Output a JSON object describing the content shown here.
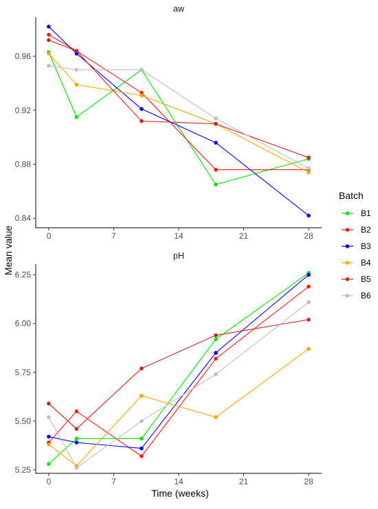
{
  "chart_data": {
    "type": "line",
    "xlabel": "Time (weeks)",
    "ylabel": "Mean value",
    "x_ticks": [
      0,
      7,
      14,
      21,
      28
    ],
    "xlim": [
      -1.4,
      29.4
    ],
    "grid": false,
    "legend": {
      "title": "Batch",
      "placement": "right",
      "entries": [
        "B1",
        "B2",
        "B3",
        "B4",
        "B5",
        "B6"
      ]
    },
    "x": [
      0,
      3,
      10,
      18,
      28
    ],
    "panels": [
      {
        "title": "aw",
        "ylim": [
          0.833,
          0.989
        ],
        "y_ticks": [
          0.84,
          0.88,
          0.92,
          0.96
        ],
        "y_tick_labels": [
          "0.84",
          "0.88",
          "0.92",
          "0.96"
        ],
        "series": [
          {
            "name": "B1",
            "color": "#00e600",
            "values": [
              0.963,
              0.915,
              0.95,
              0.865,
              0.884
            ]
          },
          {
            "name": "B2",
            "color": "#ff1a1a",
            "values": [
              0.976,
              0.964,
              0.933,
              0.876,
              0.876
            ]
          },
          {
            "name": "B3",
            "color": "#0000ff",
            "values": [
              0.982,
              0.962,
              0.921,
              0.896,
              0.842
            ]
          },
          {
            "name": "B4",
            "color": "#ffa500",
            "values": [
              0.962,
              0.939,
              0.931,
              0.91,
              0.874
            ]
          },
          {
            "name": "B5",
            "color": "#cc2222",
            "values": [
              0.972,
              0.964,
              0.912,
              0.91,
              0.885
            ]
          },
          {
            "name": "B6",
            "color": "#bebebe",
            "values": [
              0.953,
              0.95,
              0.95,
              0.914,
              0.877
            ]
          }
        ]
      },
      {
        "title": "pH",
        "ylim": [
          5.232,
          6.305
        ],
        "y_ticks": [
          5.25,
          5.5,
          5.75,
          6.0,
          6.25
        ],
        "y_tick_labels": [
          "5.25",
          "5.50",
          "5.75",
          "6.00",
          "6.25"
        ],
        "series": [
          {
            "name": "B1",
            "color": "#00e600",
            "values": [
              5.28,
              5.41,
              5.41,
              5.92,
              6.26
            ]
          },
          {
            "name": "B2",
            "color": "#ff1a1a",
            "values": [
              5.39,
              5.55,
              5.32,
              5.82,
              6.19
            ]
          },
          {
            "name": "B3",
            "color": "#0000ff",
            "values": [
              5.42,
              5.39,
              5.36,
              5.85,
              6.25
            ]
          },
          {
            "name": "B4",
            "color": "#ffa500",
            "values": [
              5.38,
              5.27,
              5.63,
              5.52,
              5.87
            ]
          },
          {
            "name": "B5",
            "color": "#cc2222",
            "values": [
              5.59,
              5.46,
              5.77,
              5.94,
              6.02
            ]
          },
          {
            "name": "B6",
            "color": "#bebebe",
            "values": [
              5.52,
              5.26,
              5.5,
              5.74,
              6.11
            ]
          }
        ]
      }
    ]
  }
}
